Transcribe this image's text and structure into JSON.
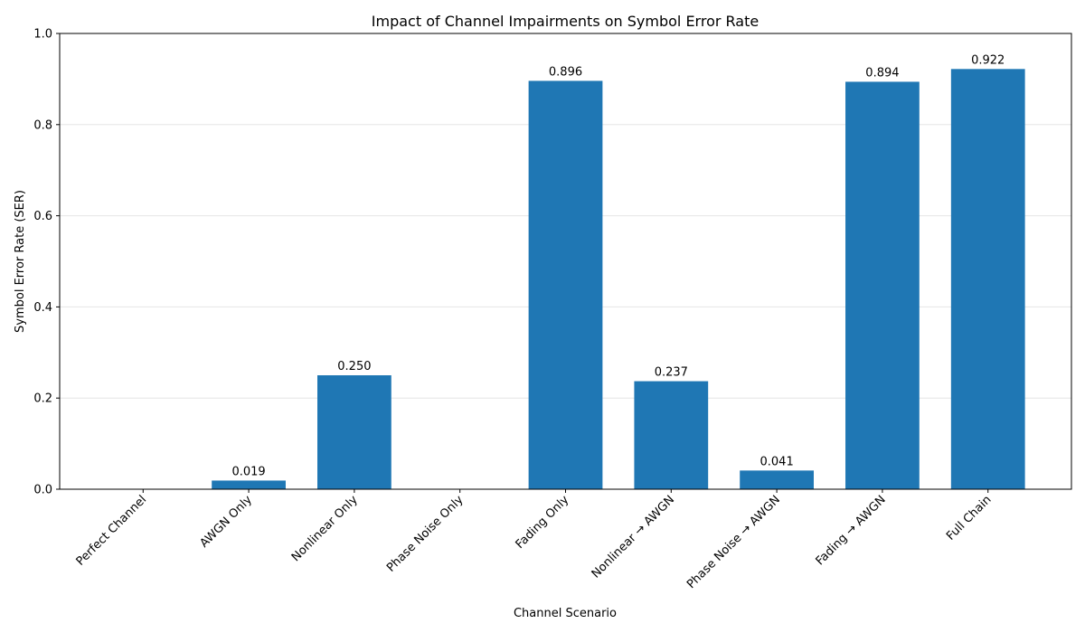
{
  "chart_data": {
    "type": "bar",
    "title": "Impact of Channel Impairments on Symbol Error Rate",
    "xlabel": "Channel Scenario",
    "ylabel": "Symbol Error Rate (SER)",
    "categories": [
      "Perfect Channel",
      "AWGN Only",
      "Nonlinear Only",
      "Phase Noise Only",
      "Fading Only",
      "Nonlinear → AWGN",
      "Phase Noise → AWGN",
      "Fading → AWGN",
      "Full Chain"
    ],
    "values": [
      0,
      0.019,
      0.25,
      0,
      0.896,
      0.237,
      0.041,
      0.894,
      0.922
    ],
    "value_labels": [
      null,
      "0.019",
      "0.250",
      null,
      "0.896",
      "0.237",
      "0.041",
      "0.894",
      "0.922"
    ],
    "color": "#1f77b4",
    "ylim": [
      0,
      1
    ],
    "yticks": [
      {
        "value": 0,
        "label": "0.0"
      },
      0.2,
      0.4,
      0.6,
      0.8,
      {
        "value": 1,
        "label": "1.0"
      }
    ],
    "grid": true
  }
}
